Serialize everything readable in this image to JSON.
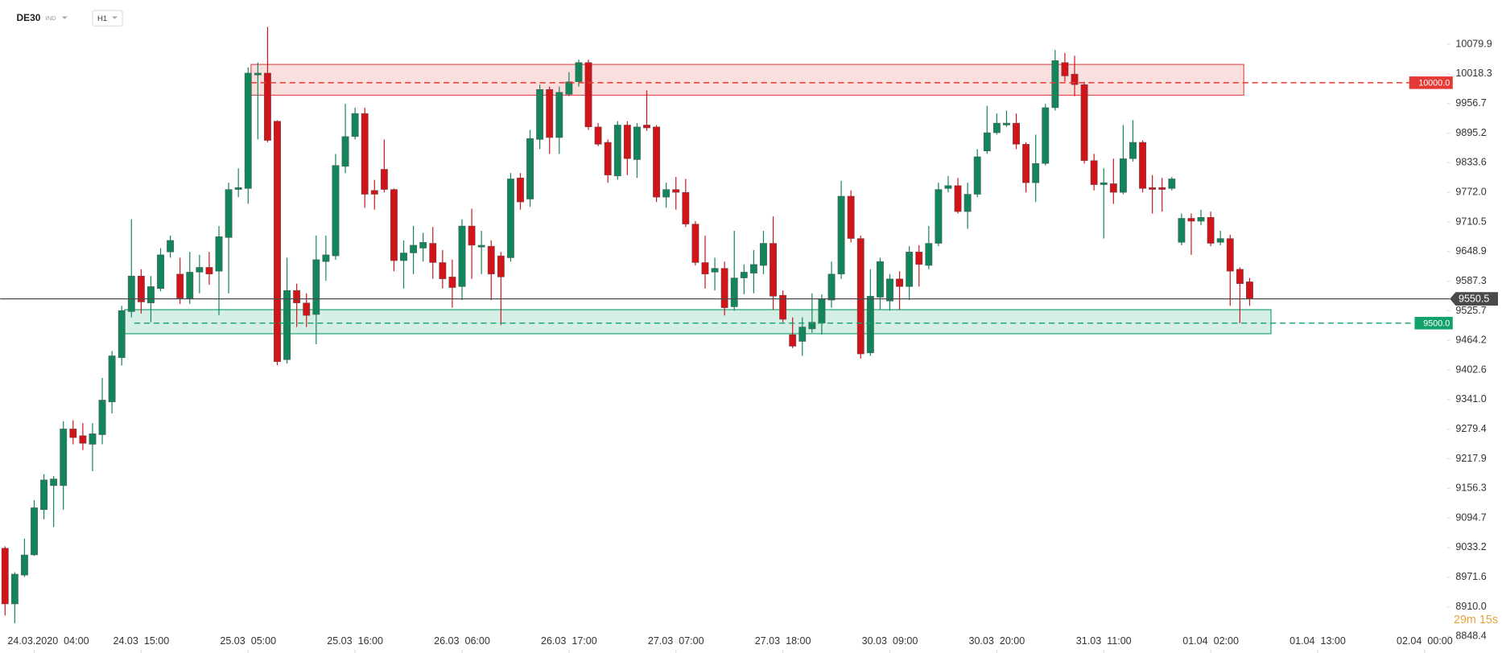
{
  "chart_data": {
    "type": "candlestick",
    "symbol": "DE30",
    "market": "IND",
    "interval": "H1",
    "countdown": "29m 15s",
    "up_color": "#13855a",
    "down_color": "#d0141a",
    "xlim": [
      -0.5,
      148
    ],
    "ylim": [
      8812,
      10172
    ],
    "yticks": [
      10079.9,
      10018.3,
      9956.7,
      9895.2,
      9833.6,
      {
        "value": 9772,
        "label": "9772.0"
      },
      9710.5,
      9648.9,
      9587.3,
      9525.7,
      9464.2,
      9402.6,
      {
        "value": 9341,
        "label": "9341.0"
      },
      9279.4,
      9217.9,
      9156.3,
      9094.7,
      9033.2,
      8971.6,
      {
        "value": 8910,
        "label": "8910.0"
      },
      8848.4
    ],
    "xticks": [
      {
        "value": 3,
        "label": "24.03.2020  04:00"
      },
      {
        "value": 14,
        "label": "24.03  15:00"
      },
      {
        "value": 25,
        "label": "25.03  05:00"
      },
      {
        "value": 36,
        "label": "25.03  16:00"
      },
      {
        "value": 47,
        "label": "26.03  06:00"
      },
      {
        "value": 58,
        "label": "26.03  17:00"
      },
      {
        "value": 69,
        "label": "27.03  07:00"
      },
      {
        "value": 80,
        "label": "27.03  18:00"
      },
      {
        "value": 91,
        "label": "30.03  09:00"
      },
      {
        "value": 102,
        "label": "30.03  20:00"
      },
      {
        "value": 113,
        "label": "31.03  11:00"
      },
      {
        "value": 124,
        "label": "01.04  02:00"
      },
      {
        "value": 135,
        "label": "01.04  13:00"
      },
      {
        "value": 146,
        "label": "02.04  00:00"
      }
    ],
    "open": [
      9032,
      8916,
      8976,
      9018,
      9112,
      9162,
      9162,
      9280,
      9266,
      9248,
      9268,
      9336,
      9428,
      9524,
      9598,
      9542,
      9572,
      9648,
      9602,
      9552,
      9606,
      9616,
      9608,
      9678,
      9778,
      9780,
      10016,
      10020,
      9920,
      9424,
      9568,
      9542,
      9518,
      9628,
      9640,
      9826,
      9888,
      9936,
      9776,
      9820,
      9778,
      9630,
      9646,
      9656,
      9666,
      9626,
      9596,
      9576,
      9702,
      9658,
      9660,
      9640,
      9636,
      9802,
      9758,
      9882,
      9986,
      9886,
      9976,
      10002,
      10042,
      9908,
      9876,
      9806,
      9912,
      9840,
      9912,
      9908,
      9762,
      9778,
      9772,
      9706,
      9626,
      9606,
      9614,
      9534,
      9594,
      9604,
      9620,
      9666,
      9558,
      9476,
      9462,
      9488,
      9500,
      9548,
      9602,
      9764,
      9676,
      9438,
      9554,
      9546,
      9592,
      9576,
      9648,
      9620,
      9666,
      9780,
      9786,
      9732,
      9768,
      9858,
      9896,
      9912,
      9916,
      9872,
      9792,
      9832,
      9948,
      10042,
      10018,
      9996,
      9838,
      9788,
      9790,
      9772,
      9842,
      9876,
      9782,
      9782,
      9780,
      9668,
      9718,
      9712,
      9720,
      9668,
      9676,
      9612,
      9586
    ],
    "high": [
      9036,
      8982,
      9052,
      9132,
      9186,
      9182,
      9296,
      9298,
      9292,
      9292,
      9386,
      9442,
      9536,
      9716,
      9612,
      9598,
      9656,
      9682,
      9636,
      9648,
      9642,
      9648,
      9702,
      9792,
      9822,
      10032,
      10042,
      10116,
      9922,
      9636,
      9582,
      9562,
      9682,
      9682,
      9852,
      9956,
      9948,
      9948,
      9798,
      9882,
      9780,
      9672,
      9702,
      9688,
      9700,
      9652,
      9632,
      9716,
      9738,
      9692,
      9672,
      9648,
      9812,
      9812,
      9902,
      9996,
      9992,
      9992,
      10022,
      10048,
      10048,
      9916,
      9882,
      9920,
      9920,
      9916,
      9984,
      9912,
      9792,
      9804,
      9800,
      9712,
      9682,
      9636,
      9628,
      9692,
      9622,
      9652,
      9692,
      9722,
      9568,
      9512,
      9512,
      9562,
      9560,
      9628,
      9796,
      9776,
      9682,
      9612,
      9636,
      9602,
      9608,
      9660,
      9662,
      9702,
      9792,
      9806,
      9802,
      9792,
      9862,
      9952,
      9936,
      9942,
      9936,
      9876,
      9892,
      9956,
      10068,
      10062,
      10056,
      10002,
      9852,
      9822,
      9842,
      9912,
      9922,
      9880,
      9808,
      9802,
      9804,
      9728,
      9728,
      9736,
      9732,
      9692,
      9684,
      9616,
      9594
    ],
    "low": [
      8892,
      8876,
      8972,
      9016,
      9092,
      9076,
      9112,
      9248,
      9236,
      9192,
      9248,
      9312,
      9412,
      9512,
      9520,
      9502,
      9566,
      9636,
      9540,
      9540,
      9562,
      9580,
      9516,
      9562,
      9762,
      9748,
      9882,
      9876,
      9412,
      9416,
      9492,
      9492,
      9456,
      9588,
      9632,
      9812,
      9882,
      9740,
      9736,
      9772,
      9608,
      9572,
      9602,
      9628,
      9592,
      9572,
      9532,
      9548,
      9592,
      9602,
      9548,
      9496,
      9628,
      9736,
      9742,
      9862,
      9852,
      9852,
      9972,
      9992,
      9902,
      9868,
      9792,
      9798,
      9808,
      9802,
      9900,
      9752,
      9740,
      9736,
      9700,
      9620,
      9572,
      9568,
      9516,
      9526,
      9560,
      9562,
      9602,
      9528,
      9502,
      9448,
      9432,
      9480,
      9476,
      9532,
      9592,
      9668,
      9426,
      9432,
      9528,
      9526,
      9528,
      9548,
      9576,
      9612,
      9660,
      9772,
      9728,
      9696,
      9762,
      9852,
      9892,
      9908,
      9862,
      9772,
      9752,
      9828,
      9942,
      10002,
      9972,
      9832,
      9776,
      9676,
      9748,
      9768,
      9836,
      9772,
      9728,
      9732,
      9776,
      9662,
      9642,
      9704,
      9660,
      9662,
      9536,
      9500,
      9536
    ],
    "close": [
      8916,
      8978,
      9018,
      9116,
      9174,
      9176,
      9280,
      9262,
      9250,
      9270,
      9340,
      9432,
      9526,
      9598,
      9544,
      9576,
      9642,
      9672,
      9552,
      9606,
      9616,
      9602,
      9680,
      9778,
      9782,
      10020,
      10020,
      9880,
      9420,
      9568,
      9542,
      9516,
      9632,
      9642,
      9828,
      9888,
      9936,
      9768,
      9768,
      9778,
      9630,
      9646,
      9662,
      9668,
      9626,
      9592,
      9574,
      9702,
      9662,
      9662,
      9602,
      9596,
      9800,
      9752,
      9884,
      9986,
      9886,
      9980,
      10002,
      10042,
      9908,
      9872,
      9808,
      9912,
      9842,
      9908,
      9906,
      9762,
      9778,
      9772,
      9706,
      9626,
      9602,
      9614,
      9532,
      9594,
      9606,
      9622,
      9666,
      9556,
      9508,
      9452,
      9492,
      9502,
      9550,
      9602,
      9764,
      9676,
      9436,
      9556,
      9628,
      9592,
      9576,
      9648,
      9622,
      9666,
      9778,
      9786,
      9732,
      9768,
      9846,
      9896,
      9916,
      9916,
      9872,
      9792,
      9832,
      9948,
      10046,
      10014,
      9996,
      9838,
      9788,
      9792,
      9772,
      9842,
      9876,
      9780,
      9778,
      9778,
      9800,
      9718,
      9712,
      9720,
      9666,
      9676,
      9608,
      9582,
      9550.5
    ],
    "zones": [
      {
        "top": 10038,
        "bottom": 9974,
        "start": 25.3,
        "end": 127.4,
        "color": "#e35050"
      },
      {
        "top": 9528,
        "bottom": 9478,
        "start": 12.3,
        "end": 130.2,
        "color": "#1ea672"
      }
    ],
    "levels": [
      {
        "value": 10000,
        "label": "10000.0",
        "start": 25.3,
        "color": "#e53935"
      },
      {
        "value": 9500,
        "label": "9500.0",
        "start": 13.3,
        "color": "#12a36a"
      }
    ],
    "current_price": {
      "value": 9550.5,
      "color": "#4a4a4a"
    }
  }
}
